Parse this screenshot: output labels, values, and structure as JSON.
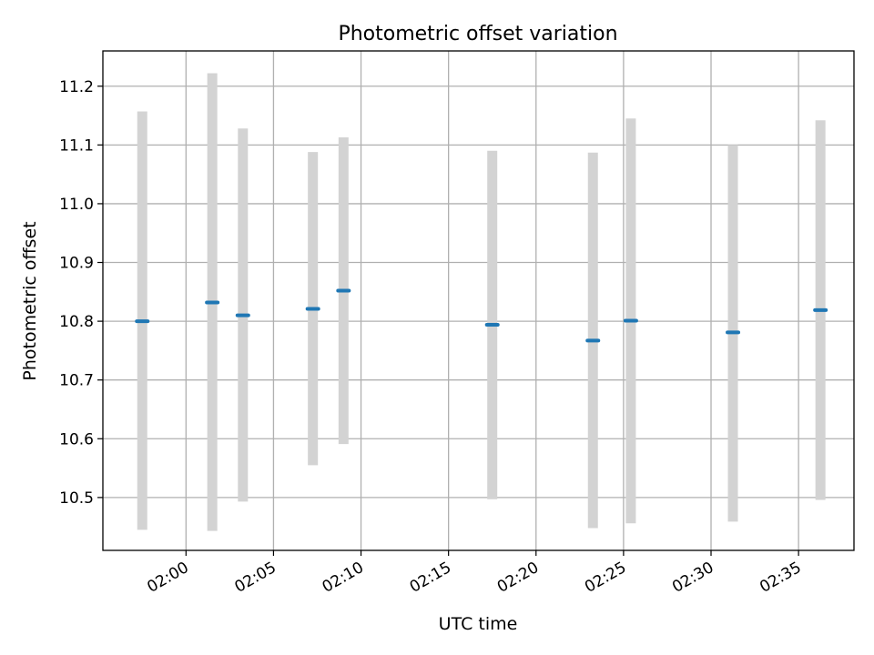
{
  "chart_data": {
    "type": "errorbar",
    "title": "Photometric offset variation",
    "xlabel": "UTC time",
    "ylabel": "Photometric offset",
    "x_ticks": [
      "02:00",
      "02:05",
      "02:10",
      "02:15",
      "02:20",
      "02:25",
      "02:30",
      "02:35"
    ],
    "y_ticks": [
      "10.5",
      "10.6",
      "10.7",
      "10.8",
      "10.9",
      "11.0",
      "11.1",
      "11.2"
    ],
    "xlim": [
      "01:55:15",
      "02:38:10"
    ],
    "ylim": [
      10.41,
      11.26
    ],
    "grid": true,
    "colors": {
      "point": "#1f77b4",
      "errorbar": "#d3d3d3",
      "grid": "#b0b0b0"
    },
    "points": [
      {
        "x": "01:57:30",
        "y": 10.8,
        "ylow": 10.445,
        "yhigh": 11.157
      },
      {
        "x": "02:01:30",
        "y": 10.832,
        "ylow": 10.443,
        "yhigh": 11.222
      },
      {
        "x": "02:03:15",
        "y": 10.81,
        "ylow": 10.493,
        "yhigh": 11.128
      },
      {
        "x": "02:07:15",
        "y": 10.821,
        "ylow": 10.555,
        "yhigh": 11.088
      },
      {
        "x": "02:09:00",
        "y": 10.852,
        "ylow": 10.591,
        "yhigh": 11.113
      },
      {
        "x": "02:17:30",
        "y": 10.794,
        "ylow": 10.497,
        "yhigh": 11.09
      },
      {
        "x": "02:23:15",
        "y": 10.767,
        "ylow": 10.448,
        "yhigh": 11.087
      },
      {
        "x": "02:25:25",
        "y": 10.801,
        "ylow": 10.456,
        "yhigh": 11.145
      },
      {
        "x": "02:31:15",
        "y": 10.781,
        "ylow": 10.459,
        "yhigh": 11.1
      },
      {
        "x": "02:36:15",
        "y": 10.819,
        "ylow": 10.496,
        "yhigh": 11.142
      }
    ]
  }
}
